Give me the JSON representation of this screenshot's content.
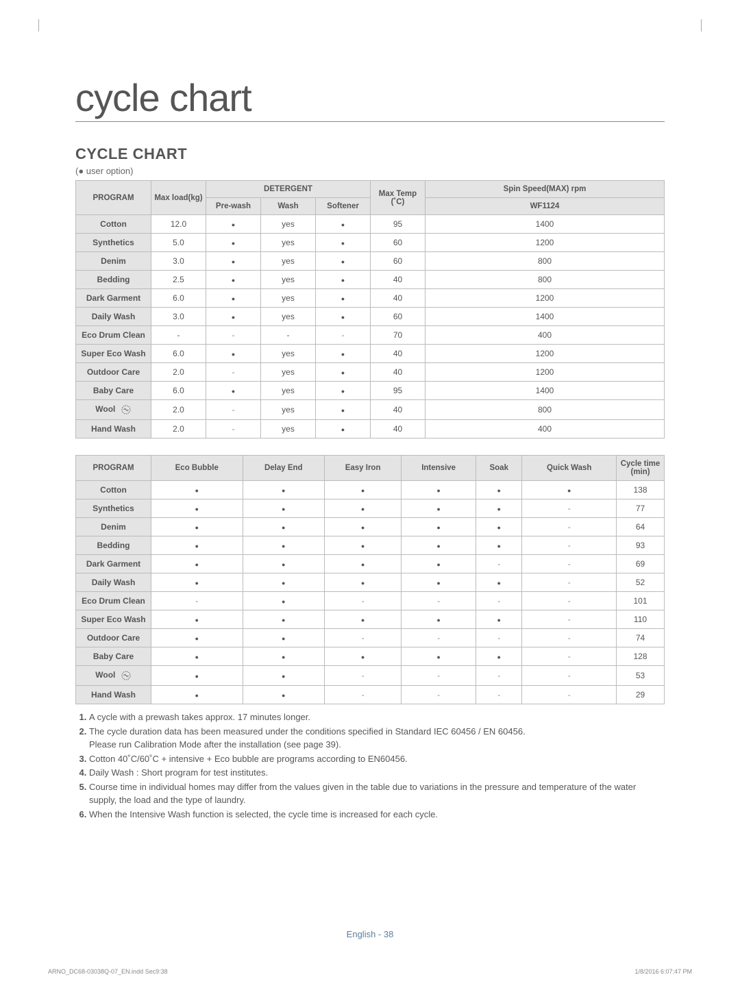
{
  "title": "cycle chart",
  "subtitle": "CYCLE CHART",
  "legend": "(● user option)",
  "table1": {
    "header_group_detergent": "DETERGENT",
    "header_spin": "Spin Speed(MAX) rpm",
    "cols": [
      "PROGRAM",
      "Max load(kg)",
      "Pre-wash",
      "Wash",
      "Softener",
      "Max Temp (˚C)",
      "WF1124"
    ],
    "rows": [
      {
        "program": "Cotton",
        "load": "12.0",
        "pre": "dot",
        "wash": "yes",
        "soft": "dot",
        "temp": "95",
        "spin": "1400"
      },
      {
        "program": "Synthetics",
        "load": "5.0",
        "pre": "dot",
        "wash": "yes",
        "soft": "dot",
        "temp": "60",
        "spin": "1200"
      },
      {
        "program": "Denim",
        "load": "3.0",
        "pre": "dot",
        "wash": "yes",
        "soft": "dot",
        "temp": "60",
        "spin": "800"
      },
      {
        "program": "Bedding",
        "load": "2.5",
        "pre": "dot",
        "wash": "yes",
        "soft": "dot",
        "temp": "40",
        "spin": "800"
      },
      {
        "program": "Dark Garment",
        "load": "6.0",
        "pre": "dot",
        "wash": "yes",
        "soft": "dot",
        "temp": "40",
        "spin": "1200"
      },
      {
        "program": "Daily Wash",
        "load": "3.0",
        "pre": "dot",
        "wash": "yes",
        "soft": "dot",
        "temp": "60",
        "spin": "1400"
      },
      {
        "program": "Eco Drum Clean",
        "load": "-",
        "pre": "dash",
        "wash": "-",
        "soft": "dash",
        "temp": "70",
        "spin": "400"
      },
      {
        "program": "Super Eco Wash",
        "load": "6.0",
        "pre": "dot",
        "wash": "yes",
        "soft": "dot",
        "temp": "40",
        "spin": "1200"
      },
      {
        "program": "Outdoor Care",
        "load": "2.0",
        "pre": "dash",
        "wash": "yes",
        "soft": "dot",
        "temp": "40",
        "spin": "1200"
      },
      {
        "program": "Baby Care",
        "load": "6.0",
        "pre": "dot",
        "wash": "yes",
        "soft": "dot",
        "temp": "95",
        "spin": "1400"
      },
      {
        "program": "Wool",
        "load": "2.0",
        "pre": "dash",
        "wash": "yes",
        "soft": "dot",
        "temp": "40",
        "spin": "800",
        "wool": true
      },
      {
        "program": "Hand Wash",
        "load": "2.0",
        "pre": "dash",
        "wash": "yes",
        "soft": "dot",
        "temp": "40",
        "spin": "400"
      }
    ]
  },
  "table2": {
    "cols": [
      "PROGRAM",
      "Eco Bubble",
      "Delay End",
      "Easy Iron",
      "Intensive",
      "Soak",
      "Quick Wash",
      "Cycle time (min)"
    ],
    "rows": [
      {
        "program": "Cotton",
        "eco": "dot",
        "delay": "dot",
        "easy": "dot",
        "int": "dot",
        "soak": "dot",
        "quick": "dot",
        "time": "138"
      },
      {
        "program": "Synthetics",
        "eco": "dot",
        "delay": "dot",
        "easy": "dot",
        "int": "dot",
        "soak": "dot",
        "quick": "dash",
        "time": "77"
      },
      {
        "program": "Denim",
        "eco": "dot",
        "delay": "dot",
        "easy": "dot",
        "int": "dot",
        "soak": "dot",
        "quick": "dash",
        "time": "64"
      },
      {
        "program": "Bedding",
        "eco": "dot",
        "delay": "dot",
        "easy": "dot",
        "int": "dot",
        "soak": "dot",
        "quick": "dash",
        "time": "93"
      },
      {
        "program": "Dark Garment",
        "eco": "dot",
        "delay": "dot",
        "easy": "dot",
        "int": "dot",
        "soak": "dash",
        "quick": "dash",
        "time": "69"
      },
      {
        "program": "Daily Wash",
        "eco": "dot",
        "delay": "dot",
        "easy": "dot",
        "int": "dot",
        "soak": "dot",
        "quick": "dash",
        "time": "52"
      },
      {
        "program": "Eco Drum Clean",
        "eco": "dash",
        "delay": "dot",
        "easy": "dash",
        "int": "dash",
        "soak": "dash",
        "quick": "dash",
        "time": "101"
      },
      {
        "program": "Super Eco Wash",
        "eco": "dot",
        "delay": "dot",
        "easy": "dot",
        "int": "dot",
        "soak": "dot",
        "quick": "dash",
        "time": "110"
      },
      {
        "program": "Outdoor Care",
        "eco": "dot",
        "delay": "dot",
        "easy": "dash",
        "int": "dash",
        "soak": "dash",
        "quick": "dash",
        "time": "74"
      },
      {
        "program": "Baby Care",
        "eco": "dot",
        "delay": "dot",
        "easy": "dot",
        "int": "dot",
        "soak": "dot",
        "quick": "dash",
        "time": "128"
      },
      {
        "program": "Wool",
        "eco": "dot",
        "delay": "dot",
        "easy": "dash",
        "int": "dash",
        "soak": "dash",
        "quick": "dash",
        "time": "53",
        "wool": true
      },
      {
        "program": "Hand Wash",
        "eco": "dot",
        "delay": "dot",
        "easy": "dash",
        "int": "dash",
        "soak": "dash",
        "quick": "dash",
        "time": "29"
      }
    ]
  },
  "notes": [
    "A cycle with a prewash takes approx. 17 minutes longer.",
    {
      "main": "The cycle duration data has been measured under the conditions specified in Standard IEC 60456 / EN 60456.",
      "sub": "Please run Calibration Mode after the installation (see page 39)."
    },
    "Cotton 40˚C/60˚C + intensive + Eco bubble are programs according to EN60456.",
    "Daily Wash : Short program for test institutes.",
    "Course time in individual homes may differ from the values given in the table due to variations in the pressure and temperature of the water supply, the load and the type of laundry.",
    "When the Intensive Wash function is selected, the cycle time is increased for each cycle."
  ],
  "footer_center": "English - 38",
  "footer_left": "ARNO_DC68-03038Q-07_EN.indd   Sec9:38",
  "footer_right": "1/8/2016   6:07:47 PM"
}
